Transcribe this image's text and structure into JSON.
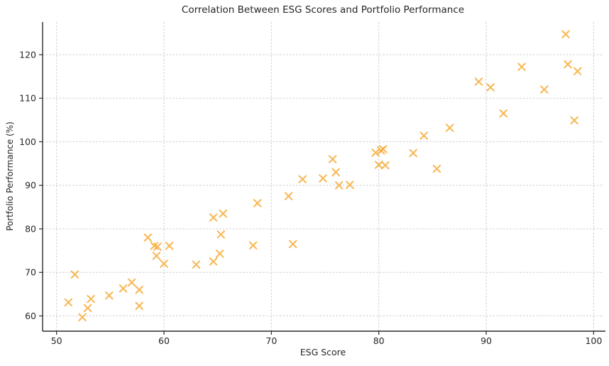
{
  "chart_data": {
    "type": "scatter",
    "title": "Correlation Between ESG Scores and Portfolio Performance",
    "xlabel": "ESG Score",
    "ylabel": "Portfolio Performance (%)",
    "xlim": [
      48.7,
      100.9
    ],
    "ylim": [
      56.5,
      127.5
    ],
    "xticks": [
      50,
      60,
      70,
      80,
      90,
      100
    ],
    "yticks": [
      60,
      70,
      80,
      90,
      100,
      110,
      120
    ],
    "grid": true,
    "grid_style": "dashed",
    "legend": false,
    "marker": {
      "shape": "x",
      "color": "#F5A72E",
      "opacity": 0.8,
      "size": 9.4,
      "stroke_width": 2.1
    },
    "series": [
      {
        "name": "portfolio-points",
        "points": [
          [
            51.1,
            63.1
          ],
          [
            51.7,
            69.5
          ],
          [
            52.4,
            59.7
          ],
          [
            52.9,
            61.8
          ],
          [
            53.2,
            63.9
          ],
          [
            54.9,
            64.7
          ],
          [
            56.2,
            66.3
          ],
          [
            57.0,
            67.7
          ],
          [
            57.7,
            66.0
          ],
          [
            57.7,
            62.3
          ],
          [
            58.5,
            78.0
          ],
          [
            59.1,
            76.1
          ],
          [
            59.4,
            75.9
          ],
          [
            59.3,
            73.8
          ],
          [
            60.0,
            72.0
          ],
          [
            60.5,
            76.1
          ],
          [
            63.0,
            71.8
          ],
          [
            64.6,
            82.6
          ],
          [
            64.6,
            72.5
          ],
          [
            65.2,
            74.3
          ],
          [
            65.3,
            78.7
          ],
          [
            65.5,
            83.5
          ],
          [
            68.3,
            76.2
          ],
          [
            68.7,
            85.9
          ],
          [
            71.6,
            87.5
          ],
          [
            72.0,
            76.5
          ],
          [
            72.9,
            91.4
          ],
          [
            74.8,
            91.6
          ],
          [
            75.7,
            96.0
          ],
          [
            76.0,
            93.0
          ],
          [
            76.3,
            90.0
          ],
          [
            77.3,
            90.1
          ],
          [
            79.7,
            97.5
          ],
          [
            80.2,
            98.0
          ],
          [
            80.4,
            98.3
          ],
          [
            80.0,
            94.7
          ],
          [
            80.6,
            94.6
          ],
          [
            83.2,
            97.4
          ],
          [
            84.2,
            101.4
          ],
          [
            85.4,
            93.8
          ],
          [
            86.6,
            103.2
          ],
          [
            89.3,
            113.8
          ],
          [
            90.4,
            112.5
          ],
          [
            91.6,
            106.5
          ],
          [
            93.3,
            117.2
          ],
          [
            95.4,
            112.0
          ],
          [
            97.4,
            124.7
          ],
          [
            97.6,
            117.8
          ],
          [
            98.5,
            116.2
          ],
          [
            98.2,
            104.9
          ]
        ]
      }
    ]
  },
  "style": {
    "background": "#ffffff",
    "text_color": "#262626",
    "spine_color": "#2b2b2b",
    "grid_color": "#bdbdbd",
    "tick_label_size": 12.5
  }
}
